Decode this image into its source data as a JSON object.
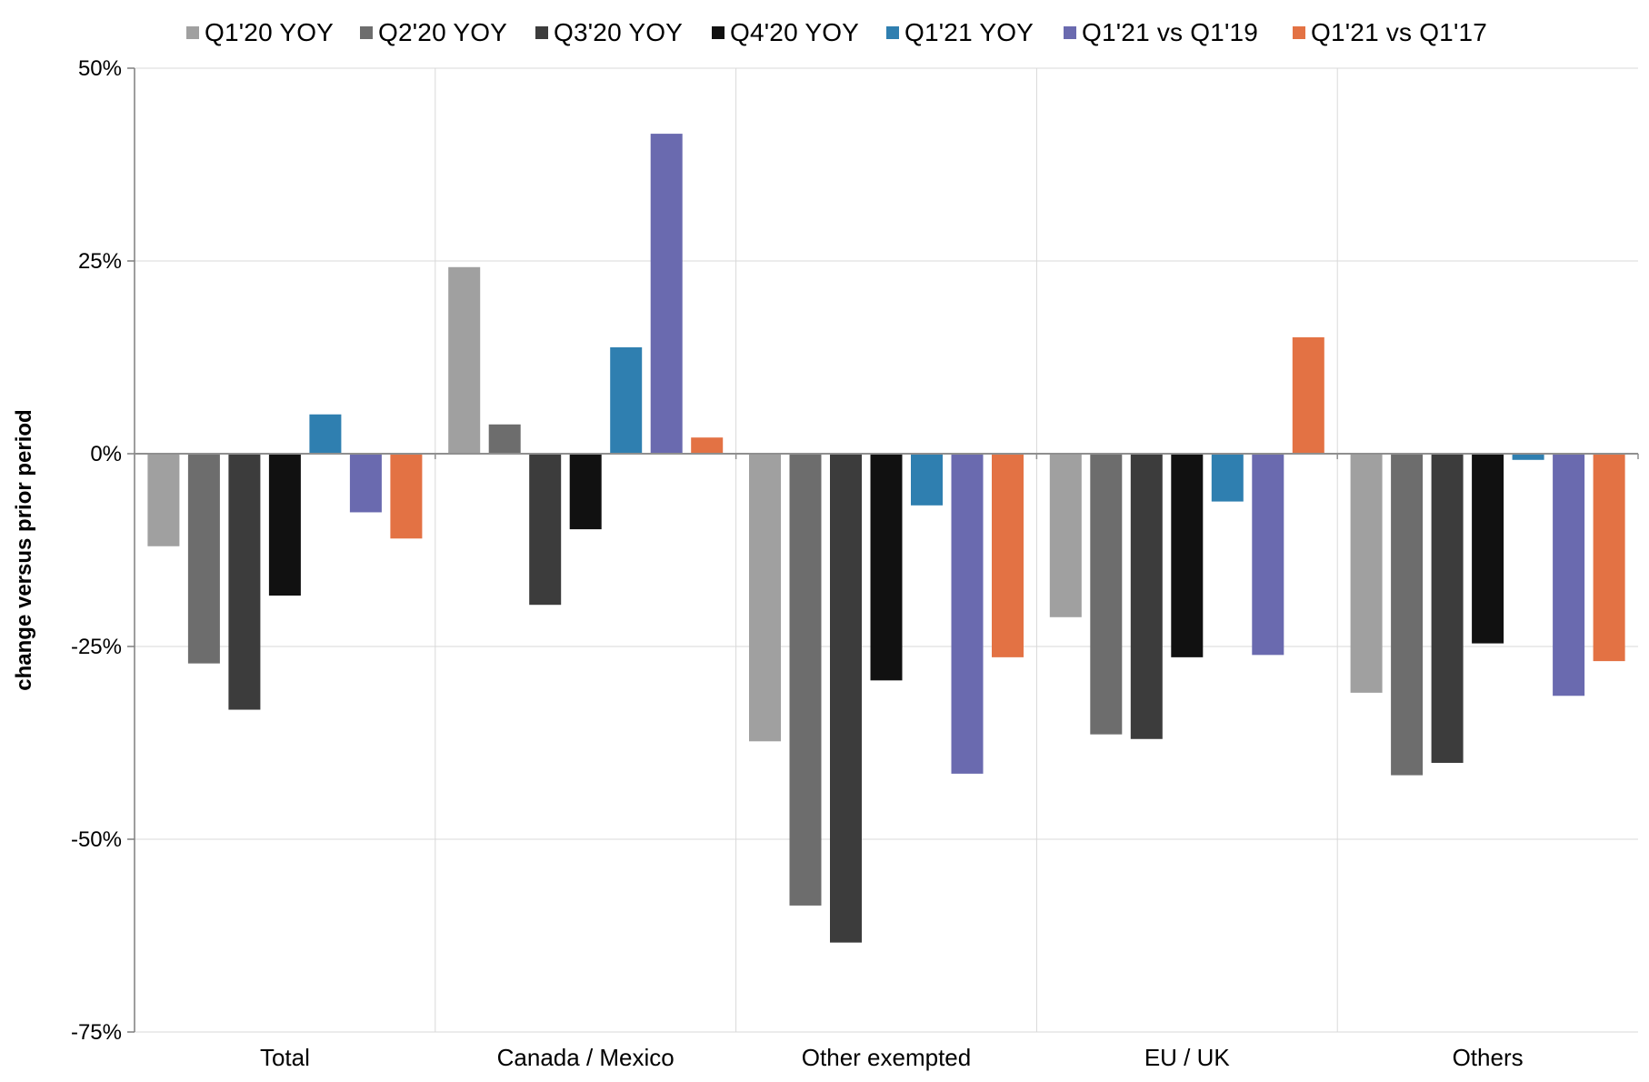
{
  "chart_data": {
    "type": "bar",
    "title": "",
    "xlabel": "",
    "ylabel": "change versus prior period",
    "ylim": [
      -75,
      50
    ],
    "yticks": [
      50,
      25,
      0,
      -25,
      -50,
      -75
    ],
    "ytick_labels": [
      "50%",
      "25%",
      "0%",
      "-25%",
      "-50%",
      "-75%"
    ],
    "grid": true,
    "legend_position": "top",
    "categories": [
      "Total",
      "Canada / Mexico",
      "Other exempted",
      "EU / UK",
      "Others"
    ],
    "series": [
      {
        "name": "Q1'20 YOY",
        "color": "#a0a0a0",
        "values": [
          -12,
          24.2,
          -37.3,
          -21.2,
          -31
        ]
      },
      {
        "name": "Q2'20 YOY",
        "color": "#6d6d6d",
        "values": [
          -27.2,
          3.8,
          -58.6,
          -36.4,
          -41.7
        ]
      },
      {
        "name": "Q3'20 YOY",
        "color": "#3c3c3c",
        "values": [
          -33.2,
          -19.6,
          -63.4,
          -37,
          -40.1
        ]
      },
      {
        "name": "Q4'20 YOY",
        "color": "#111111",
        "values": [
          -18.4,
          -9.8,
          -29.4,
          -26.4,
          -24.6
        ]
      },
      {
        "name": "Q1'21 YOY",
        "color": "#2f7fb0",
        "values": [
          5.1,
          13.8,
          -6.7,
          -6.2,
          -0.8
        ]
      },
      {
        "name": "Q1'21 vs Q1'19",
        "color": "#6a6aaf",
        "values": [
          -7.6,
          41.5,
          -41.5,
          -26.1,
          -31.4
        ]
      },
      {
        "name": "Q1'21 vs Q1'17",
        "color": "#e37244",
        "values": [
          -11,
          2.1,
          -26.4,
          15.1,
          -26.9
        ]
      }
    ]
  }
}
